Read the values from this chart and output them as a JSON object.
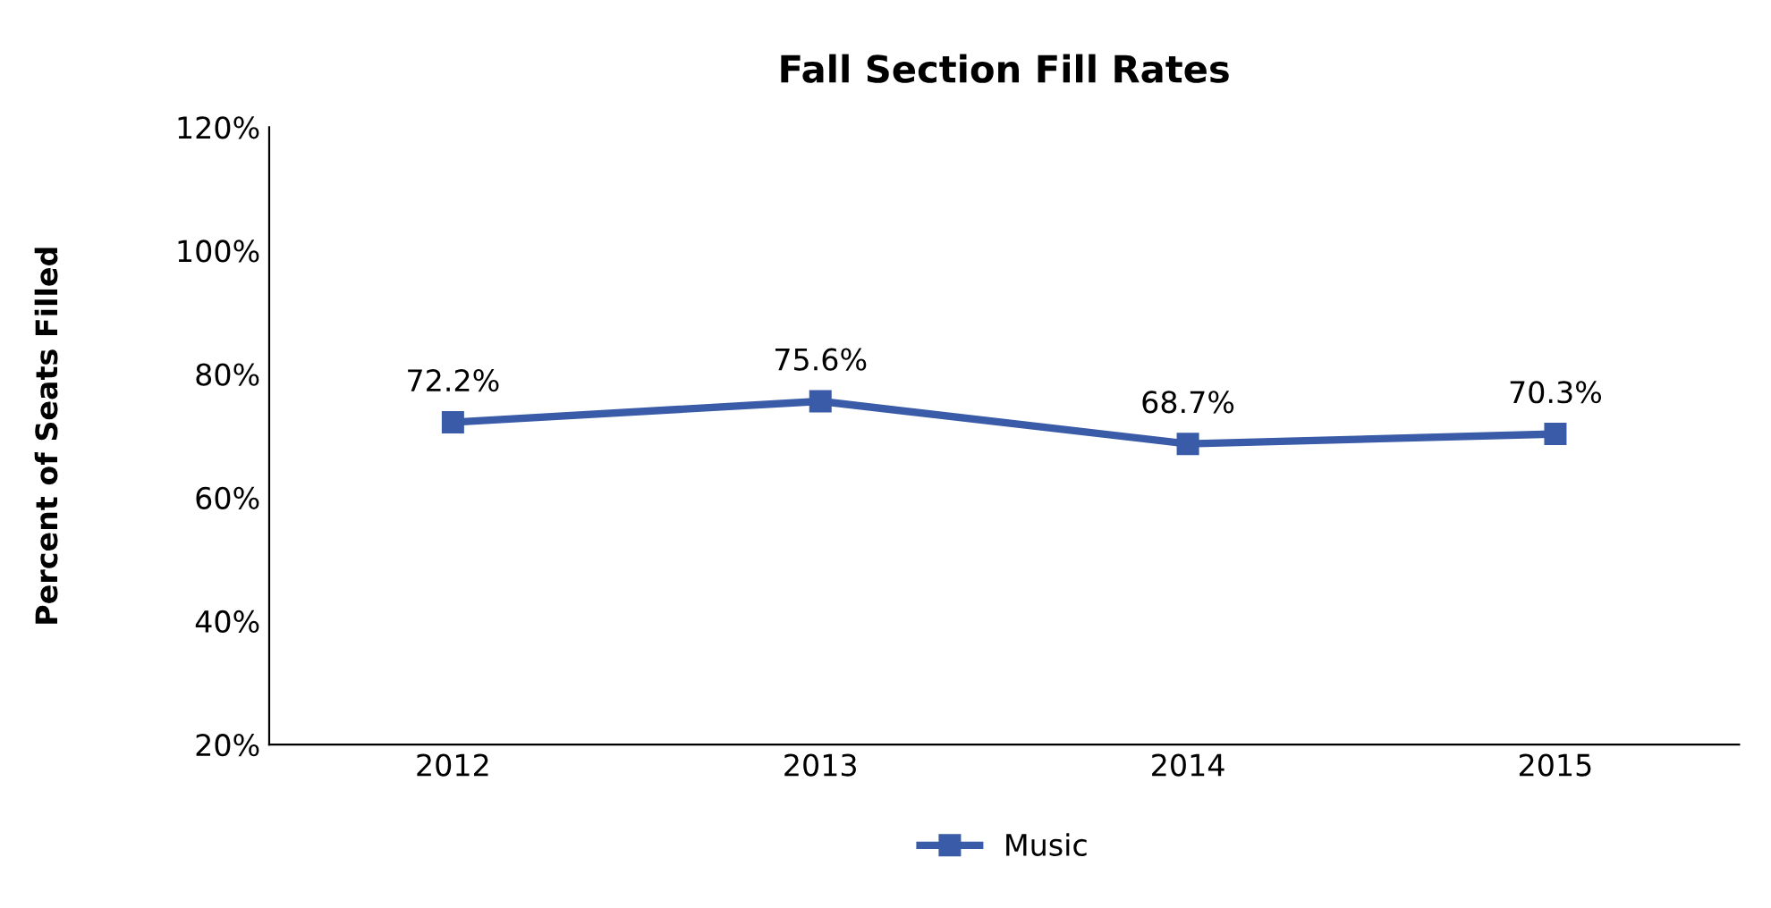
{
  "chart_data": {
    "type": "line",
    "title": "Fall Section Fill Rates",
    "ylabel": "Percent of Seats Filled",
    "categories": [
      "2012",
      "2013",
      "2014",
      "2015"
    ],
    "series": [
      {
        "name": "Music",
        "color": "#3a5ba8",
        "values": [
          72.2,
          75.6,
          68.7,
          70.3
        ],
        "value_labels": [
          "72.2%",
          "75.6%",
          "68.7%",
          "70.3%"
        ]
      }
    ],
    "ylim": [
      20,
      120
    ],
    "yticks": [
      {
        "value": 20,
        "label": "20%"
      },
      {
        "value": 40,
        "label": "40%"
      },
      {
        "value": 60,
        "label": "60%"
      },
      {
        "value": 80,
        "label": "80%"
      },
      {
        "value": 100,
        "label": "100%"
      },
      {
        "value": 120,
        "label": "120%"
      }
    ],
    "marker": "square",
    "line_style": "solid",
    "grid": false,
    "legend": "bottom"
  }
}
